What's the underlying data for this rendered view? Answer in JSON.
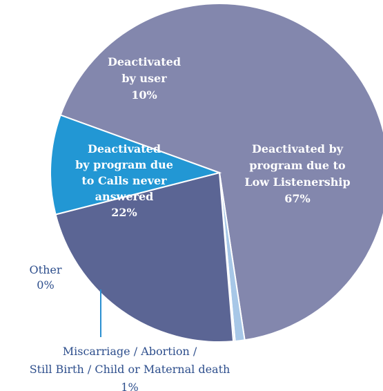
{
  "chart_data": {
    "type": "pie",
    "slices": [
      {
        "label_lines": [
          "Deactivated by",
          "program due to",
          "Low Listenership"
        ],
        "value_label": "67%",
        "value": 67,
        "color": "#8387ad"
      },
      {
        "label_lines": [
          "Miscarriage / Abortion /",
          "Still Birth / Child or Maternal death"
        ],
        "value_label": "1%",
        "value": 1,
        "color": "#a7c7e7"
      },
      {
        "label_lines": [
          "Other"
        ],
        "value_label": "0%",
        "value": 0,
        "color": "#c9d7ec"
      },
      {
        "label_lines": [
          "Deactivated",
          "by program due",
          "to Calls never",
          "answered"
        ],
        "value_label": "22%",
        "value": 22,
        "color": "#5b6594"
      },
      {
        "label_lines": [
          "Deactivated",
          "by user"
        ],
        "value_label": "10%",
        "value": 10,
        "color": "#2297d4"
      }
    ],
    "leader_color": "#2b8fd0",
    "outside_text_color": "#2d4e8c"
  }
}
